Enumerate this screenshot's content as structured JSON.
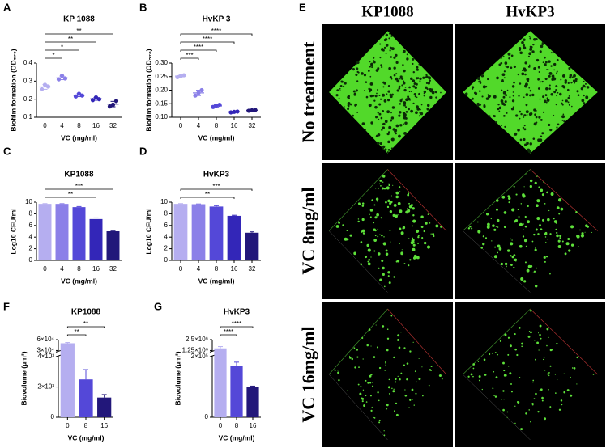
{
  "chart_data": [
    {
      "type": "dot",
      "label": "A",
      "title": "KP 1088",
      "x_label": "VC (mg/ml)",
      "y_label": "Biofilm formation (OD₅₇₀)",
      "categories": [
        "0",
        "4",
        "8",
        "16",
        "32"
      ],
      "points": [
        [
          0.255,
          0.28,
          0.27
        ],
        [
          0.31,
          0.33,
          0.315
        ],
        [
          0.215,
          0.23,
          0.22
        ],
        [
          0.195,
          0.21,
          0.2
        ],
        [
          0.16,
          0.17,
          0.19
        ]
      ],
      "values": [
        0.268,
        0.318,
        0.222,
        0.202,
        0.173
      ],
      "errors": [
        0.013,
        0.01,
        0.008,
        0.008,
        0.015
      ],
      "colors": [
        "#b5aef0",
        "#8b80e8",
        "#5448d8",
        "#3326b8",
        "#22177a"
      ],
      "ylim": [
        0.1,
        0.4
      ],
      "yticks": [
        0.1,
        0.2,
        0.3,
        0.4
      ],
      "significance": [
        {
          "from": "0",
          "to": "32",
          "label": "**"
        },
        {
          "from": "0",
          "to": "16",
          "label": "**"
        },
        {
          "from": "0",
          "to": "8",
          "label": "*"
        },
        {
          "from": "0",
          "to": "4",
          "label": "*"
        }
      ]
    },
    {
      "type": "dot",
      "label": "B",
      "title": "HvKP 3",
      "x_label": "VC (mg/ml)",
      "y_label": "Biofilm formation (OD₅₇₀)",
      "categories": [
        "0",
        "4",
        "8",
        "16",
        "32"
      ],
      "points": [
        [
          0.248,
          0.252,
          0.255
        ],
        [
          0.18,
          0.19,
          0.2
        ],
        [
          0.138,
          0.143,
          0.146
        ],
        [
          0.118,
          0.12,
          0.121
        ],
        [
          0.124,
          0.126,
          0.127
        ]
      ],
      "values": [
        0.252,
        0.19,
        0.142,
        0.12,
        0.126
      ],
      "errors": [
        0.003,
        0.01,
        0.004,
        0.002,
        0.002
      ],
      "colors": [
        "#b5aef0",
        "#8b80e8",
        "#5448d8",
        "#3326b8",
        "#22177a"
      ],
      "ylim": [
        0.1,
        0.3
      ],
      "yticks": [
        {
          "value": 0.1,
          "label": "0.10"
        },
        0.15,
        {
          "value": 0.2,
          "label": "0.20"
        },
        0.25,
        {
          "value": 0.3,
          "label": "0.30"
        }
      ],
      "significance": [
        {
          "from": "0",
          "to": "32",
          "label": "****"
        },
        {
          "from": "0",
          "to": "16",
          "label": "****"
        },
        {
          "from": "0",
          "to": "8",
          "label": "****"
        },
        {
          "from": "0",
          "to": "4",
          "label": "***"
        }
      ]
    },
    {
      "type": "bar",
      "label": "C",
      "title": "KP1088",
      "x_label": "VC (mg/ml)",
      "y_label": "Log10 CFU/ml",
      "categories": [
        "0",
        "4",
        "8",
        "16",
        "32"
      ],
      "values": [
        9.7,
        9.7,
        9.15,
        7.1,
        5.0
      ],
      "errors": [
        0.05,
        0.05,
        0.1,
        0.2,
        0.1
      ],
      "colors": [
        "#b5aef0",
        "#8b80e8",
        "#5448d8",
        "#3326b8",
        "#22177a"
      ],
      "ylim": [
        0,
        10
      ],
      "yticks": [
        0,
        2,
        4,
        6,
        8,
        10
      ],
      "significance": [
        {
          "from": "0",
          "to": "32",
          "label": "***"
        },
        {
          "from": "0",
          "to": "16",
          "label": "**"
        }
      ]
    },
    {
      "type": "bar",
      "label": "D",
      "title": "HvKP3",
      "x_label": "VC (mg/ml)",
      "y_label": "Log10 CFU/ml",
      "categories": [
        "0",
        "4",
        "8",
        "16",
        "32"
      ],
      "values": [
        9.7,
        9.65,
        9.25,
        7.65,
        4.75
      ],
      "errors": [
        0.05,
        0.05,
        0.15,
        0.1,
        0.15
      ],
      "colors": [
        "#b5aef0",
        "#8b80e8",
        "#5448d8",
        "#3326b8",
        "#22177a"
      ],
      "ylim": [
        0,
        10
      ],
      "yticks": [
        0,
        2,
        4,
        6,
        8,
        10
      ],
      "significance": [
        {
          "from": "0",
          "to": "32",
          "label": "***"
        },
        {
          "from": "0",
          "to": "16",
          "label": "**"
        }
      ]
    },
    {
      "type": "bar",
      "label": "F",
      "title": "KP1088",
      "x_label": "VC (mg/ml)",
      "y_label": "Biovolume (μm³)",
      "categories": [
        "0",
        "8",
        "16"
      ],
      "values": [
        50000,
        2500,
        1300
      ],
      "errors": [
        2000,
        650,
        200
      ],
      "colors": [
        "#b5aef0",
        "#5448d8",
        "#22177a"
      ],
      "ylim": [
        0,
        60000
      ],
      "axis_break": [
        4000,
        30000
      ],
      "yticks": [
        0,
        {
          "value": 2000,
          "label": "2×10³"
        },
        {
          "value": 4000,
          "label": "4×10³"
        },
        {
          "value": 30000,
          "label": "3×10⁴"
        },
        {
          "value": 60000,
          "label": "6×10⁴"
        }
      ],
      "significance": [
        {
          "from": "0",
          "to": "16",
          "label": "**"
        },
        {
          "from": "0",
          "to": "8",
          "label": "**"
        }
      ]
    },
    {
      "type": "bar",
      "label": "G",
      "title": "HvKP3",
      "x_label": "VC (mg/ml)",
      "y_label": "Biovolume (μm³)",
      "categories": [
        "0",
        "8",
        "16"
      ],
      "values": [
        1500000,
        170000,
        100000
      ],
      "errors": [
        200000,
        12000,
        3000
      ],
      "colors": [
        "#b5aef0",
        "#5448d8",
        "#22177a"
      ],
      "ylim": [
        0,
        2500000
      ],
      "axis_break": [
        200000,
        1250000
      ],
      "yticks": [
        0,
        {
          "value": 200000,
          "label": "2×10⁵"
        },
        {
          "value": 1250000,
          "label": "1.25×10⁶"
        },
        {
          "value": 2500000,
          "label": "2.5×10⁶"
        }
      ],
      "significance": [
        {
          "from": "0",
          "to": "16",
          "label": "****"
        },
        {
          "from": "0",
          "to": "8",
          "label": "****"
        }
      ]
    }
  ],
  "microscopy": {
    "label": "E",
    "columns": [
      "KP1088",
      "HvKP3"
    ],
    "rows": [
      "No treatment",
      "VC 8mg/ml",
      "VC 16mg/ml"
    ]
  }
}
